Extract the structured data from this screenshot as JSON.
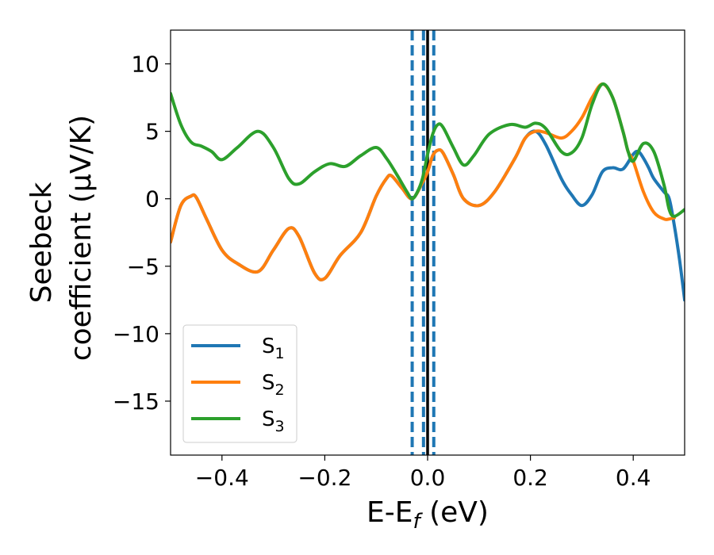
{
  "chart_data": {
    "type": "line",
    "xlabel": "E-E",
    "xlabel_sub": "f",
    "xlabel_unit": " (eV)",
    "ylabel_line1": "Seebeck",
    "ylabel_line2": "coefficient  (μV/K)",
    "xlim": [
      -0.5,
      0.5
    ],
    "ylim": [
      -19,
      12.5
    ],
    "xticks": [
      -0.4,
      -0.2,
      0.0,
      0.2,
      0.4
    ],
    "xtick_labels": [
      "−0.4",
      "−0.2",
      "0.0",
      "0.2",
      "0.4"
    ],
    "yticks": [
      10,
      5,
      0,
      -5,
      -10,
      -15
    ],
    "ytick_labels": [
      "10",
      "5",
      "0",
      "−5",
      "−10",
      "−15"
    ],
    "vlines": [
      {
        "x": 0.0,
        "style": "solid",
        "color": "#000000"
      },
      {
        "x": -0.03,
        "style": "dashed",
        "color": "#1f77b4"
      },
      {
        "x": -0.008,
        "style": "dashed",
        "color": "#1f77b4"
      },
      {
        "x": 0.012,
        "style": "dashed",
        "color": "#1f77b4"
      }
    ],
    "legend_position": "lower-left",
    "series": [
      {
        "name": "S",
        "subscript": "1",
        "color": "#1f77b4",
        "x": [
          -0.5,
          -0.48,
          -0.46,
          -0.45,
          -0.43,
          -0.4,
          -0.37,
          -0.33,
          -0.3,
          -0.27,
          -0.25,
          -0.22,
          -0.2,
          -0.17,
          -0.13,
          -0.1,
          -0.08,
          -0.07,
          -0.05,
          -0.03,
          -0.01,
          0.0,
          0.01,
          0.02,
          0.03,
          0.05,
          0.07,
          0.1,
          0.13,
          0.17,
          0.19,
          0.21,
          0.23,
          0.26,
          0.28,
          0.3,
          0.32,
          0.34,
          0.36,
          0.38,
          0.4,
          0.41,
          0.42,
          0.43,
          0.44,
          0.46,
          0.47,
          0.48,
          0.49,
          0.5
        ],
        "values": [
          -3.2,
          -0.5,
          0.2,
          0.1,
          -1.5,
          -3.8,
          -4.8,
          -5.4,
          -3.8,
          -2.2,
          -2.8,
          -5.5,
          -5.9,
          -4.2,
          -2.5,
          0.2,
          1.5,
          1.7,
          0.8,
          0.0,
          1.2,
          2.0,
          3.2,
          3.6,
          3.4,
          1.8,
          0.0,
          -0.5,
          0.5,
          3.0,
          4.5,
          5.0,
          4.0,
          1.5,
          0.3,
          -0.5,
          0.3,
          2.0,
          2.3,
          2.2,
          3.3,
          3.5,
          3.0,
          2.3,
          1.5,
          0.5,
          0.0,
          -2.0,
          -4.5,
          -7.5
        ]
      },
      {
        "name": "S",
        "subscript": "2",
        "color": "#ff7f0e",
        "x": [
          -0.5,
          -0.48,
          -0.46,
          -0.45,
          -0.43,
          -0.4,
          -0.37,
          -0.33,
          -0.3,
          -0.27,
          -0.25,
          -0.22,
          -0.2,
          -0.17,
          -0.13,
          -0.1,
          -0.08,
          -0.07,
          -0.05,
          -0.03,
          -0.01,
          0.0,
          0.01,
          0.02,
          0.03,
          0.05,
          0.07,
          0.1,
          0.13,
          0.17,
          0.19,
          0.21,
          0.23,
          0.26,
          0.28,
          0.3,
          0.32,
          0.34,
          0.36,
          0.38,
          0.39,
          0.4,
          0.42,
          0.44,
          0.46,
          0.47,
          0.48
        ],
        "values": [
          -3.2,
          -0.5,
          0.2,
          0.1,
          -1.5,
          -3.8,
          -4.8,
          -5.4,
          -3.8,
          -2.2,
          -2.8,
          -5.5,
          -5.9,
          -4.2,
          -2.5,
          0.2,
          1.5,
          1.7,
          0.8,
          0.0,
          1.2,
          2.0,
          3.2,
          3.6,
          3.4,
          1.8,
          0.0,
          -0.5,
          0.5,
          3.0,
          4.5,
          5.0,
          4.9,
          4.5,
          5.0,
          6.0,
          7.5,
          8.5,
          7.5,
          5.0,
          3.5,
          2.8,
          0.5,
          -1.0,
          -1.5,
          -1.5,
          -1.4
        ]
      },
      {
        "name": "S",
        "subscript": "3",
        "color": "#2ca02c",
        "x": [
          -0.5,
          -0.48,
          -0.46,
          -0.44,
          -0.42,
          -0.4,
          -0.37,
          -0.33,
          -0.3,
          -0.27,
          -0.25,
          -0.22,
          -0.19,
          -0.16,
          -0.13,
          -0.1,
          -0.08,
          -0.06,
          -0.04,
          -0.03,
          -0.02,
          -0.01,
          0.0,
          0.01,
          0.02,
          0.03,
          0.05,
          0.07,
          0.09,
          0.12,
          0.16,
          0.19,
          0.21,
          0.23,
          0.26,
          0.28,
          0.3,
          0.32,
          0.34,
          0.36,
          0.38,
          0.39,
          0.4,
          0.42,
          0.44,
          0.46,
          0.47,
          0.48,
          0.5
        ],
        "values": [
          7.8,
          5.5,
          4.2,
          3.9,
          3.5,
          2.9,
          3.8,
          5.0,
          3.8,
          1.5,
          1.1,
          2.0,
          2.6,
          2.4,
          3.2,
          3.8,
          3.0,
          1.8,
          0.5,
          0.0,
          0.5,
          1.5,
          3.3,
          4.8,
          5.5,
          5.3,
          3.8,
          2.5,
          3.2,
          4.8,
          5.5,
          5.3,
          5.6,
          5.2,
          3.5,
          3.4,
          4.5,
          7.0,
          8.5,
          7.5,
          5.0,
          3.5,
          2.8,
          4.1,
          3.5,
          1.0,
          -0.8,
          -1.3,
          -0.8
        ]
      }
    ]
  }
}
